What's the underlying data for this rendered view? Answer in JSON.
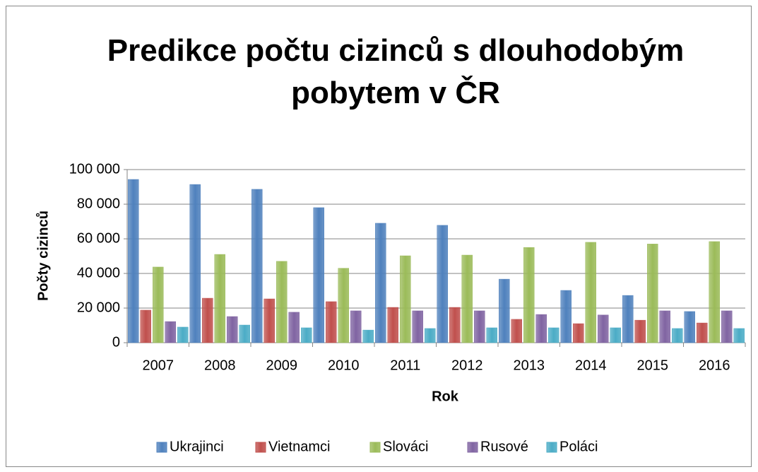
{
  "chart_data": {
    "type": "bar",
    "title": "Predikce počtu cizinců s dlouhodobým pobytem v ČR",
    "x_label": "Rok",
    "y_label": "Počty cizinců",
    "categories": [
      "2007",
      "2008",
      "2009",
      "2010",
      "2011",
      "2012",
      "2013",
      "2014",
      "2015",
      "2016"
    ],
    "series": [
      {
        "name": "Ukrajinci",
        "color": "#4f81bd",
        "values": [
          94300,
          91400,
          88600,
          78000,
          69000,
          67800,
          36700,
          30200,
          27300,
          18000
        ]
      },
      {
        "name": "Vietnamci",
        "color": "#c0504d",
        "values": [
          18800,
          25700,
          25300,
          23700,
          20400,
          20400,
          13500,
          11000,
          13000,
          11400
        ]
      },
      {
        "name": "Slováci",
        "color": "#9bbb59",
        "values": [
          43700,
          51000,
          47000,
          43000,
          50200,
          50600,
          55000,
          58000,
          57000,
          58400
        ]
      },
      {
        "name": "Rusové",
        "color": "#8064a2",
        "values": [
          12200,
          15100,
          17600,
          18400,
          18400,
          18400,
          16300,
          16000,
          18400,
          18400
        ]
      },
      {
        "name": "Poláci",
        "color": "#4bacc6",
        "values": [
          9000,
          10200,
          8600,
          7300,
          8200,
          8600,
          8600,
          8600,
          8200,
          8200
        ]
      }
    ],
    "ylim": [
      0,
      100000
    ],
    "yticks": [
      0,
      {
        "value": 20000,
        "label": "20 000"
      },
      {
        "value": 40000,
        "label": "40 000"
      },
      {
        "value": 60000,
        "label": "60 000"
      },
      {
        "value": 80000,
        "label": "80 000"
      },
      {
        "value": 100000,
        "label": "100 000"
      }
    ],
    "grid": true,
    "legend": "bottom"
  }
}
